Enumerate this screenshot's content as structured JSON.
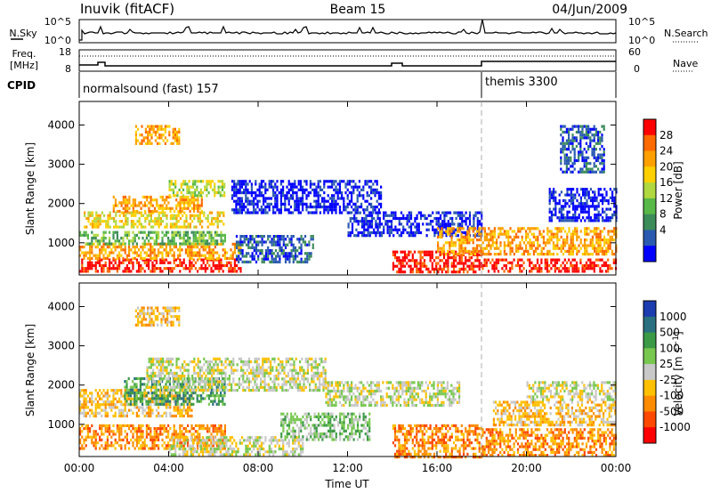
{
  "header": {
    "station": "Inuvik (fitACF)",
    "beam": "Beam 15",
    "date": "04/Jun/2009"
  },
  "noise_panel": {
    "left_label": "N.Sky",
    "right_label": "N.Search",
    "left_ticks": [
      "10^5",
      "10^0"
    ],
    "right_ticks": [
      "10^5",
      "10^0"
    ]
  },
  "freq_panel": {
    "left_label_top": "Freq.",
    "left_label_bottom": "[MHz]",
    "right_label": "Nave",
    "left_ticks": [
      "18",
      "8"
    ],
    "right_ticks": [
      "60",
      "0"
    ]
  },
  "cpid_panel": {
    "label": "CPID",
    "modes": [
      {
        "name": "normalsound (fast) 157",
        "start": "00:00"
      },
      {
        "name": "themis 3300",
        "start": "18:00"
      }
    ]
  },
  "x_axis": {
    "title": "Time UT",
    "ticks": [
      "00:00",
      "04:00",
      "08:00",
      "12:00",
      "16:00",
      "20:00",
      "00:00"
    ]
  },
  "chart_data": [
    {
      "type": "heatmap",
      "name": "power",
      "ylabel": "Slant Range [km]",
      "yticks": [
        "1000",
        "2000",
        "3000",
        "4000"
      ],
      "ylim": [
        180,
        4600
      ],
      "xlim_hours": [
        0,
        24
      ],
      "colorbar": {
        "label": "Power [dB]",
        "ticks": [
          "28",
          "24",
          "20",
          "16",
          "12",
          "8",
          "4"
        ],
        "colors": [
          "#ff0000",
          "#ff6a00",
          "#ffa000",
          "#ffd000",
          "#b0d840",
          "#58b848",
          "#3c8c5a",
          "#2a5ab0",
          "#0000ff"
        ]
      },
      "regions": [
        {
          "t0": 0.0,
          "t1": 7.2,
          "r0": 250,
          "r1": 600,
          "level": 0
        },
        {
          "t0": 0.0,
          "t1": 7.2,
          "r0": 600,
          "r1": 1000,
          "level": 2
        },
        {
          "t0": 0.0,
          "t1": 6.5,
          "r0": 1000,
          "r1": 1300,
          "level": 5
        },
        {
          "t0": 0.2,
          "t1": 6.5,
          "r0": 1400,
          "r1": 1800,
          "level": 3
        },
        {
          "t0": 1.5,
          "t1": 5.5,
          "r0": 1800,
          "r1": 2200,
          "level": 2
        },
        {
          "t0": 4.0,
          "t1": 6.5,
          "r0": 2200,
          "r1": 2600,
          "level": 4
        },
        {
          "t0": 2.5,
          "t1": 4.5,
          "r0": 3500,
          "r1": 4000,
          "level": 2
        },
        {
          "t0": 7.0,
          "t1": 10.5,
          "r0": 500,
          "r1": 1200,
          "level": 7
        },
        {
          "t0": 6.8,
          "t1": 13.5,
          "r0": 1800,
          "r1": 2600,
          "level": 8
        },
        {
          "t0": 12.0,
          "t1": 18.0,
          "r0": 1200,
          "r1": 1800,
          "level": 8
        },
        {
          "t0": 14.0,
          "t1": 18.0,
          "r0": 250,
          "r1": 800,
          "level": 0
        },
        {
          "t0": 16.0,
          "t1": 24.0,
          "r0": 700,
          "r1": 1400,
          "level": 2
        },
        {
          "t0": 18.0,
          "t1": 24.0,
          "r0": 250,
          "r1": 600,
          "level": 0
        },
        {
          "t0": 21.0,
          "t1": 24.0,
          "r0": 1600,
          "r1": 2400,
          "level": 8
        },
        {
          "t0": 21.5,
          "t1": 23.5,
          "r0": 2800,
          "r1": 4000,
          "level": 7
        }
      ]
    },
    {
      "type": "heatmap",
      "name": "velocity",
      "ylabel": "Slant Range [km]",
      "yticks": [
        "1000",
        "2000",
        "3000",
        "4000"
      ],
      "ylim": [
        180,
        4600
      ],
      "xlim_hours": [
        0,
        24
      ],
      "colorbar": {
        "label": "Velocity [m s^-1]",
        "ticks": [
          "1000",
          "500",
          "100",
          "25",
          "-25",
          "-100",
          "-500",
          "-1000"
        ],
        "colors": [
          "#1c3cb0",
          "#2a7080",
          "#3c9a46",
          "#78c850",
          "#c8c8c8",
          "#ffc000",
          "#ff8c00",
          "#ff4800",
          "#ff0000"
        ]
      },
      "regions": [
        {
          "t0": 0.0,
          "t1": 6.5,
          "r0": 400,
          "r1": 1000,
          "level": 6
        },
        {
          "t0": 0.0,
          "t1": 5.0,
          "r0": 1200,
          "r1": 1900,
          "level": 5
        },
        {
          "t0": 2.0,
          "t1": 6.5,
          "r0": 1500,
          "r1": 2200,
          "level": 2
        },
        {
          "t0": 3.0,
          "t1": 11.0,
          "r0": 1900,
          "r1": 2700,
          "level": 4
        },
        {
          "t0": 4.0,
          "t1": 10.0,
          "r0": 200,
          "r1": 700,
          "level": 4
        },
        {
          "t0": 9.0,
          "t1": 13.0,
          "r0": 600,
          "r1": 1300,
          "level": 3
        },
        {
          "t0": 11.0,
          "t1": 17.0,
          "r0": 1500,
          "r1": 2100,
          "level": 4
        },
        {
          "t0": 14.0,
          "t1": 18.0,
          "r0": 200,
          "r1": 1000,
          "level": 6
        },
        {
          "t0": 18.0,
          "t1": 24.0,
          "r0": 200,
          "r1": 900,
          "level": 6
        },
        {
          "t0": 18.5,
          "t1": 24.0,
          "r0": 1000,
          "r1": 1600,
          "level": 5
        },
        {
          "t0": 20.0,
          "t1": 24.0,
          "r0": 1600,
          "r1": 2100,
          "level": 4
        },
        {
          "t0": 2.5,
          "t1": 4.5,
          "r0": 3500,
          "r1": 4000,
          "level": 5
        }
      ]
    }
  ]
}
